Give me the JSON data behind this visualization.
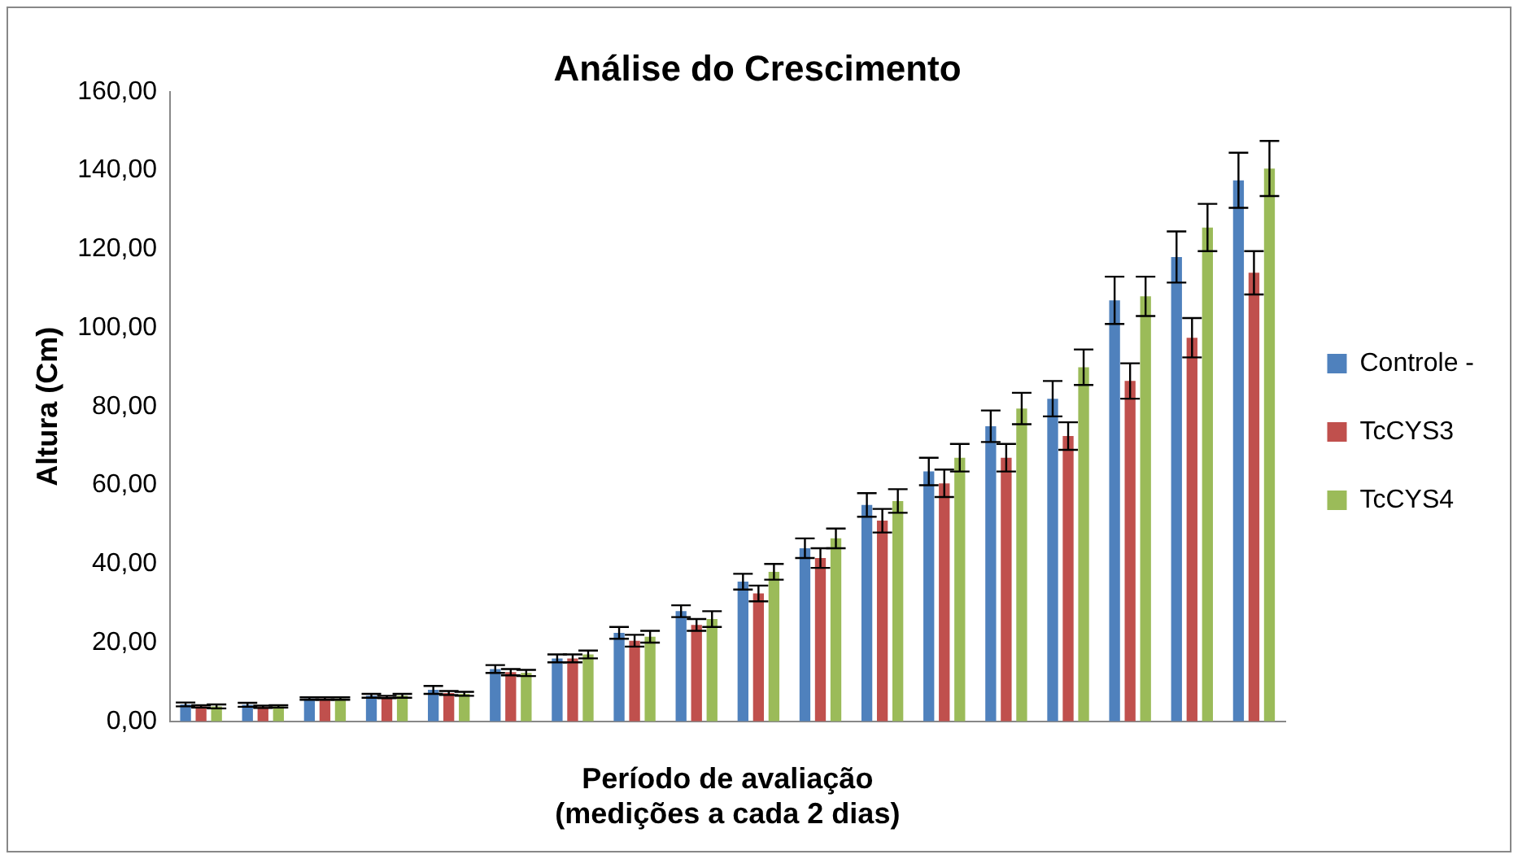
{
  "chart_data": {
    "type": "bar",
    "title": "Análise do Crescimento",
    "xlabel": "Período de avaliação\n(medições a cada 2 dias)",
    "ylabel": "Altura (Cm)",
    "categories": [
      null,
      null,
      null,
      null,
      null,
      null,
      null,
      null,
      null,
      null,
      null,
      null,
      null,
      null,
      null,
      null,
      null,
      null
    ],
    "series": [
      {
        "name": "Controle -",
        "color": "#4f81bd",
        "values": [
          4.3,
          4.2,
          5.8,
          6.5,
          8.0,
          13.3,
          16.0,
          22.5,
          28.0,
          35.5,
          44.0,
          55.0,
          63.5,
          75.0,
          82.0,
          107.0,
          118.0,
          137.5
        ],
        "errors": [
          0.5,
          0.5,
          0.3,
          0.5,
          1.0,
          1.0,
          1.0,
          1.5,
          1.5,
          2.0,
          2.5,
          3.0,
          3.5,
          4.0,
          4.5,
          6.0,
          6.5,
          7.0
        ]
      },
      {
        "name": "TcCYS3",
        "color": "#c0504d",
        "values": [
          3.8,
          3.7,
          5.8,
          6.2,
          7.2,
          12.5,
          16.0,
          20.5,
          24.5,
          32.5,
          41.5,
          51.0,
          60.5,
          67.0,
          72.5,
          86.5,
          97.5,
          114.0
        ],
        "errors": [
          0.3,
          0.3,
          0.3,
          0.3,
          0.5,
          0.8,
          1.0,
          1.5,
          1.5,
          2.0,
          2.5,
          3.0,
          3.5,
          3.5,
          3.5,
          4.5,
          5.0,
          5.5
        ]
      },
      {
        "name": "TcCYS4",
        "color": "#9bbb59",
        "values": [
          3.8,
          3.8,
          5.8,
          6.5,
          7.0,
          12.3,
          17.0,
          21.5,
          26.0,
          38.0,
          46.5,
          56.0,
          67.0,
          79.5,
          90.0,
          108.0,
          125.5,
          140.5
        ],
        "errors": [
          0.5,
          0.3,
          0.3,
          0.5,
          0.5,
          0.8,
          1.0,
          1.5,
          2.0,
          2.0,
          2.5,
          3.0,
          3.5,
          4.0,
          4.5,
          5.0,
          6.0,
          7.0
        ]
      }
    ],
    "ylim": [
      0,
      160
    ],
    "yticks": [
      {
        "value": 0,
        "label": "0,00"
      },
      {
        "value": 20,
        "label": "20,00"
      },
      {
        "value": 40,
        "label": "40,00"
      },
      {
        "value": 60,
        "label": "60,00"
      },
      {
        "value": 80,
        "label": "80,00"
      },
      {
        "value": 100,
        "label": "100,00"
      },
      {
        "value": 120,
        "label": "120,00"
      },
      {
        "value": 140,
        "label": "140,00"
      },
      {
        "value": 160,
        "label": "160,00"
      }
    ],
    "grid": false,
    "legend": "right"
  }
}
